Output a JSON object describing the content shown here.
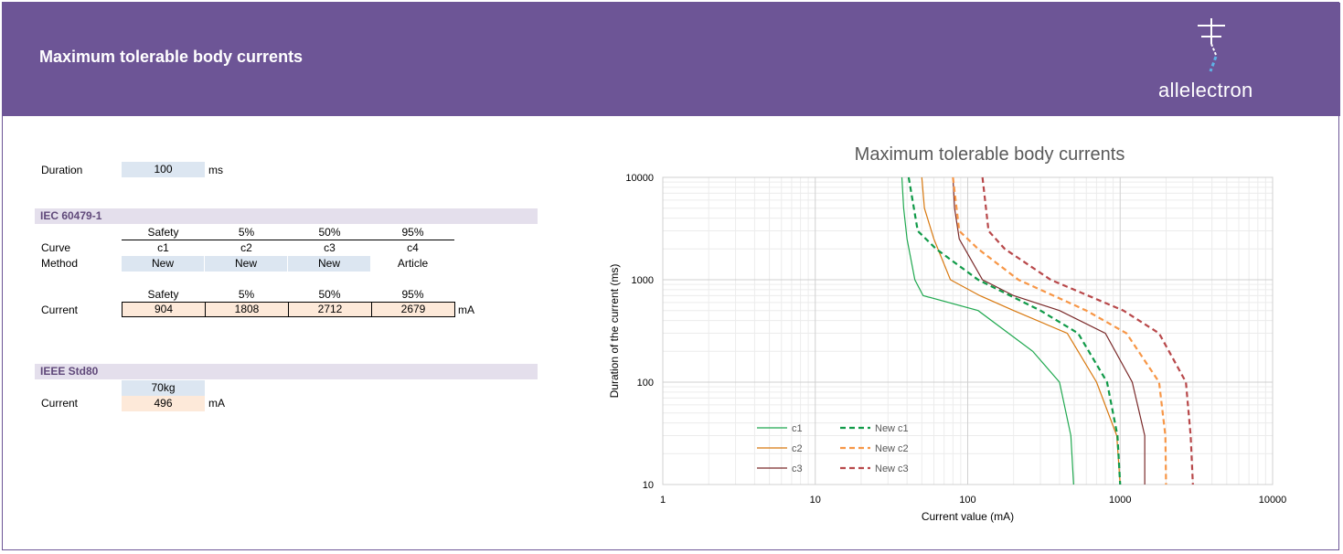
{
  "header": {
    "title": "Maximum tolerable body currents",
    "logo": "allelectron"
  },
  "sheet": {
    "duration": {
      "label": "Duration",
      "value": 100,
      "unit": "ms"
    },
    "iec": {
      "title": "IEC 60479-1",
      "headers": [
        "Safety",
        "5%",
        "50%",
        "95%"
      ],
      "curve_label": "Curve",
      "curves": [
        "c1",
        "c2",
        "c3",
        "c4"
      ],
      "method_label": "Method",
      "methods": [
        "New",
        "New",
        "New",
        "Article"
      ],
      "current_headers": [
        "Safety",
        "5%",
        "50%",
        "95%"
      ],
      "current_label": "Current",
      "currents": [
        904,
        1808,
        2712,
        2679
      ],
      "unit": "mA"
    },
    "ieee": {
      "title": "IEEE Std80",
      "header": "70kg",
      "current_label": "Current",
      "current": 496,
      "unit": "mA"
    }
  },
  "chart_data": {
    "type": "line",
    "title": "Maximum tolerable body currents",
    "x_label": "Current value (mA)",
    "y_label": "Duration of the current (ms)",
    "log_x": true,
    "log_y": true,
    "grid": true,
    "minor_grid": true,
    "legend": "lower left",
    "xlim": [
      1,
      10000
    ],
    "xticks": [
      1,
      10,
      100,
      1000,
      10000
    ],
    "ylim": [
      10,
      10000
    ],
    "yticks": [
      10,
      100,
      1000,
      10000
    ],
    "series": [
      {
        "name": "c1",
        "color": "#1fa84f",
        "dashed": false,
        "x": [
          37,
          38,
          40,
          45,
          51,
          117,
          267,
          400,
          475,
          495
        ],
        "values": [
          10000,
          5000,
          2500,
          1000,
          700,
          500,
          200,
          100,
          30,
          10
        ]
      },
      {
        "name": "c2",
        "color": "#d8780e",
        "dashed": false,
        "x": [
          50,
          52,
          60,
          77,
          120,
          200,
          450,
          700,
          950,
          1000
        ],
        "values": [
          10000,
          5000,
          2500,
          1000,
          700,
          500,
          300,
          100,
          30,
          10
        ]
      },
      {
        "name": "c3",
        "color": "#7a2a2a",
        "dashed": false,
        "x": [
          80,
          82,
          88,
          125,
          200,
          400,
          800,
          1200,
          1450,
          1450
        ],
        "values": [
          10000,
          5000,
          2500,
          1000,
          700,
          500,
          300,
          100,
          30,
          10
        ]
      },
      {
        "name": "New c1",
        "color": "#109a48",
        "dashed": true,
        "x": [
          41,
          47,
          62,
          117,
          300,
          530,
          820,
          960,
          1000
        ],
        "values": [
          10000,
          3000,
          2000,
          1000,
          500,
          300,
          100,
          30,
          10
        ]
      },
      {
        "name": "New c2",
        "color": "#f79646",
        "dashed": true,
        "x": [
          80,
          88,
          117,
          215,
          600,
          1100,
          1800,
          1980,
          2000
        ],
        "values": [
          10000,
          3000,
          2000,
          1000,
          500,
          300,
          100,
          30,
          10
        ]
      },
      {
        "name": "New c3",
        "color": "#b8484a",
        "dashed": true,
        "x": [
          125,
          137,
          175,
          350,
          1050,
          1800,
          2700,
          2900,
          3000
        ],
        "values": [
          10000,
          3000,
          2000,
          1000,
          500,
          300,
          100,
          30,
          10
        ]
      }
    ]
  }
}
